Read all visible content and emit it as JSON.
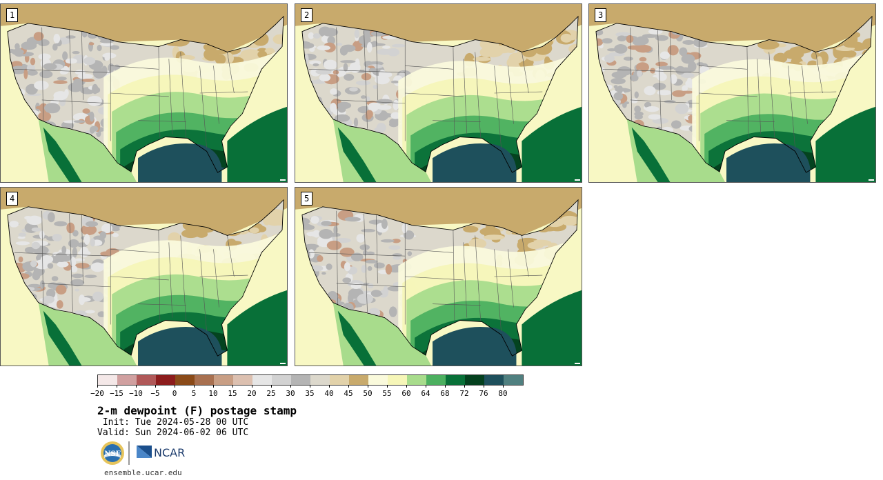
{
  "panels": [
    {
      "label": "1",
      "moisture": 0.88
    },
    {
      "label": "2",
      "moisture": 0.8
    },
    {
      "label": "3",
      "moisture": 0.84
    },
    {
      "label": "4",
      "moisture": 0.9
    },
    {
      "label": "5",
      "moisture": 0.76
    }
  ],
  "colorbar": {
    "colors": [
      "#f4e8e8",
      "#d0a0a0",
      "#b05858",
      "#8c1c1c",
      "#8a4a18",
      "#a87050",
      "#c89e84",
      "#dcc0b0",
      "#e6e6e6",
      "#d2d2d2",
      "#b4b4b4",
      "#dcd8cc",
      "#e2d2aa",
      "#c8aa6c",
      "#fafadc",
      "#f6f6b8",
      "#a8dc8c",
      "#4cb060",
      "#087038",
      "#04401e",
      "#1e505c",
      "#508080"
    ],
    "ticks": [
      "−20",
      "−15",
      "−10",
      "−5",
      "0",
      "5",
      "10",
      "15",
      "20",
      "25",
      "30",
      "35",
      "40",
      "45",
      "50",
      "55",
      "60",
      "64",
      "68",
      "72",
      "76",
      "80"
    ]
  },
  "title": "2-m dewpoint (F) postage stamp",
  "init": " Init: Tue 2024-05-28 00 UTC",
  "valid": "Valid: Sun 2024-06-02 06 UTC",
  "logos": {
    "nsf_text": "NSF",
    "ncar_text": "NCAR",
    "nsf_icon": "nsf-logo-icon",
    "ncar_icon": "ncar-logo-icon"
  },
  "url": "ensemble.ucar.edu"
}
